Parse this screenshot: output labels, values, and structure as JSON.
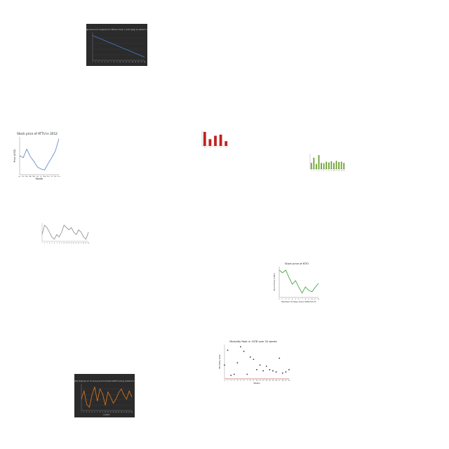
{
  "chart_data": [
    {
      "type": "line",
      "title": "Renal glucosuria (% Subjects) for Ethanol dose 1 (0.97 g/kg) by patient number",
      "xlabel": "",
      "ylabel": "",
      "x": [
        1,
        2,
        3,
        4,
        5,
        6,
        7,
        8,
        9,
        10,
        11,
        12,
        13,
        14,
        15,
        16,
        17,
        18
      ],
      "series": [
        {
          "name": "",
          "values": [
            38,
            37,
            36,
            35,
            34,
            33,
            32,
            31,
            30,
            29,
            28,
            27,
            26,
            25,
            24,
            23,
            22,
            21
          ]
        }
      ],
      "style": {
        "background": "#2b2b2b",
        "line": "#4a78c8"
      }
    },
    {
      "type": "line",
      "title": "Stock price of ATTU in 2012",
      "xlabel": "Month",
      "ylabel": "Price (USD)",
      "categories": [
        "Jan",
        "Feb",
        "Mar",
        "Apr",
        "May",
        "Jun",
        "Jul",
        "Aug",
        "Sep",
        "Oct",
        "Nov",
        "Dec"
      ],
      "series": [
        {
          "name": "",
          "values": [
            9.5,
            9.3,
            10.2,
            9.4,
            8.9,
            8.3,
            8.1,
            8.0,
            8.7,
            9.3,
            10.0,
            11.3
          ]
        }
      ],
      "ylim": [
        7.5,
        11.5
      ],
      "style": {
        "line": "#5b7fc4"
      }
    },
    {
      "type": "bar",
      "title": "",
      "xlabel": "",
      "ylabel": "",
      "categories": [
        "A",
        "B",
        "C",
        "D",
        "E"
      ],
      "values": [
        6.2,
        3.0,
        4.5,
        5.0,
        2.1
      ],
      "style": {
        "bar": "#c0221f"
      }
    },
    {
      "type": "bar",
      "title": "",
      "xlabel": "",
      "ylabel": "",
      "categories": [
        "1",
        "2",
        "3",
        "4",
        "5",
        "6",
        "7",
        "8",
        "9",
        "10",
        "11",
        "12",
        "13",
        "14"
      ],
      "values": [
        3.0,
        5.5,
        2.5,
        6.8,
        3.0,
        2.8,
        3.6,
        3.2,
        3.8,
        3.0,
        4.0,
        3.4,
        3.6,
        3.0
      ],
      "style": {
        "bar": "#6aa02c"
      }
    },
    {
      "type": "line",
      "title": "",
      "xlabel": "",
      "ylabel": "",
      "categories": [
        "1",
        "2",
        "3",
        "4",
        "5",
        "6",
        "7",
        "8",
        "9",
        "10",
        "11",
        "12",
        "13",
        "14",
        "15",
        "16",
        "17",
        "18",
        "19",
        "20"
      ],
      "series": [
        {
          "name": "",
          "values": [
            8,
            12,
            11,
            9,
            7,
            6,
            8,
            7,
            9,
            12,
            11,
            10,
            11,
            9,
            8,
            10,
            9,
            7,
            6,
            9
          ]
        }
      ],
      "style": {
        "line": "#888888"
      }
    },
    {
      "type": "line",
      "title": "Stock price of KTIO",
      "xlabel": "Number of Days since 2019-03-27",
      "ylabel": "Stock Price (USD)",
      "x": [
        0,
        1,
        2,
        3,
        4,
        5,
        6,
        7,
        8,
        9,
        10,
        11,
        12
      ],
      "series": [
        {
          "name": "",
          "values": [
            41.2,
            40.6,
            41.2,
            39.5,
            38.0,
            38.8,
            37.3,
            36.0,
            37.4,
            36.6,
            36.3,
            37.3,
            38.2
          ]
        }
      ],
      "ylim": [
        35,
        42
      ],
      "style": {
        "line": "#3a9a3a"
      }
    },
    {
      "type": "scatter",
      "title": "Mortality Rate in 1978 over 20 weeks",
      "xlabel": "Weeks",
      "ylabel": "Mortality Rate",
      "x": [
        0,
        1,
        2,
        3,
        4,
        5,
        6,
        7,
        8,
        9,
        10,
        11,
        12,
        13,
        14,
        15,
        16,
        17,
        18,
        19,
        20
      ],
      "series": [
        {
          "name": "",
          "values": [
            6,
            12.5,
            1.5,
            2,
            7,
            14,
            12,
            2,
            9.5,
            8.5,
            4,
            6,
            3.5,
            5.5,
            4,
            3.5,
            3,
            9,
            2.5,
            3,
            4
          ]
        }
      ],
      "ylim": [
        0,
        15
      ],
      "style": {
        "point": "#333333",
        "baseline": "#e05050"
      }
    },
    {
      "type": "line",
      "title": "Air quality diagnosis (in %) among environmental health tracking residents in cities",
      "xlabel": "Location",
      "ylabel": "",
      "categories": [
        "1",
        "2",
        "3",
        "4",
        "5",
        "6",
        "7",
        "8",
        "9",
        "10",
        "11",
        "12",
        "13",
        "14",
        "15",
        "16",
        "17",
        "18",
        "19",
        "20"
      ],
      "series": [
        {
          "name": "",
          "values": [
            40,
            48,
            35,
            32,
            44,
            52,
            38,
            50,
            45,
            34,
            47,
            42,
            36,
            40,
            46,
            50,
            44,
            40,
            48,
            42
          ]
        }
      ],
      "style": {
        "background": "#2b2b2b",
        "line": "#e07a20"
      }
    }
  ]
}
